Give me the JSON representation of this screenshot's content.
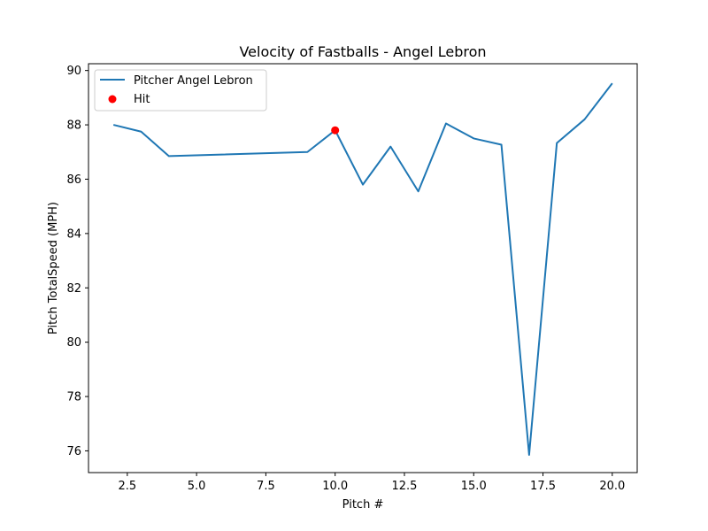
{
  "chart_data": {
    "type": "line",
    "title": "Velocity of Fastballs - Angel Lebron",
    "xlabel": "Pitch #",
    "ylabel": "Pitch TotalSpeed (MPH)",
    "xlim": [
      1.1,
      20.9
    ],
    "ylim": [
      75.2,
      90.25
    ],
    "xticks": [
      2.5,
      5.0,
      7.5,
      10.0,
      12.5,
      15.0,
      17.5,
      20.0
    ],
    "xtick_labels": [
      "2.5",
      "5.0",
      "7.5",
      "10.0",
      "12.5",
      "15.0",
      "17.5",
      "20.0"
    ],
    "yticks": [
      76,
      78,
      80,
      82,
      84,
      86,
      88,
      90
    ],
    "ytick_labels": [
      "76",
      "78",
      "80",
      "82",
      "84",
      "86",
      "88",
      "90"
    ],
    "grid": false,
    "legend_position": "top-left",
    "series": [
      {
        "name": "Pitcher Angel Lebron",
        "color": "#1f77b4",
        "x": [
          2,
          3,
          4,
          9,
          10,
          11,
          12,
          13,
          14,
          15,
          16,
          17,
          18,
          19,
          20
        ],
        "y": [
          88.0,
          87.75,
          86.85,
          87.0,
          87.8,
          85.8,
          87.2,
          85.55,
          88.05,
          87.5,
          87.27,
          75.85,
          87.33,
          88.2,
          89.53
        ]
      }
    ],
    "highlights": [
      {
        "name": "Hit",
        "color": "#ff0000",
        "x": [
          10
        ],
        "y": [
          87.8
        ]
      }
    ]
  }
}
